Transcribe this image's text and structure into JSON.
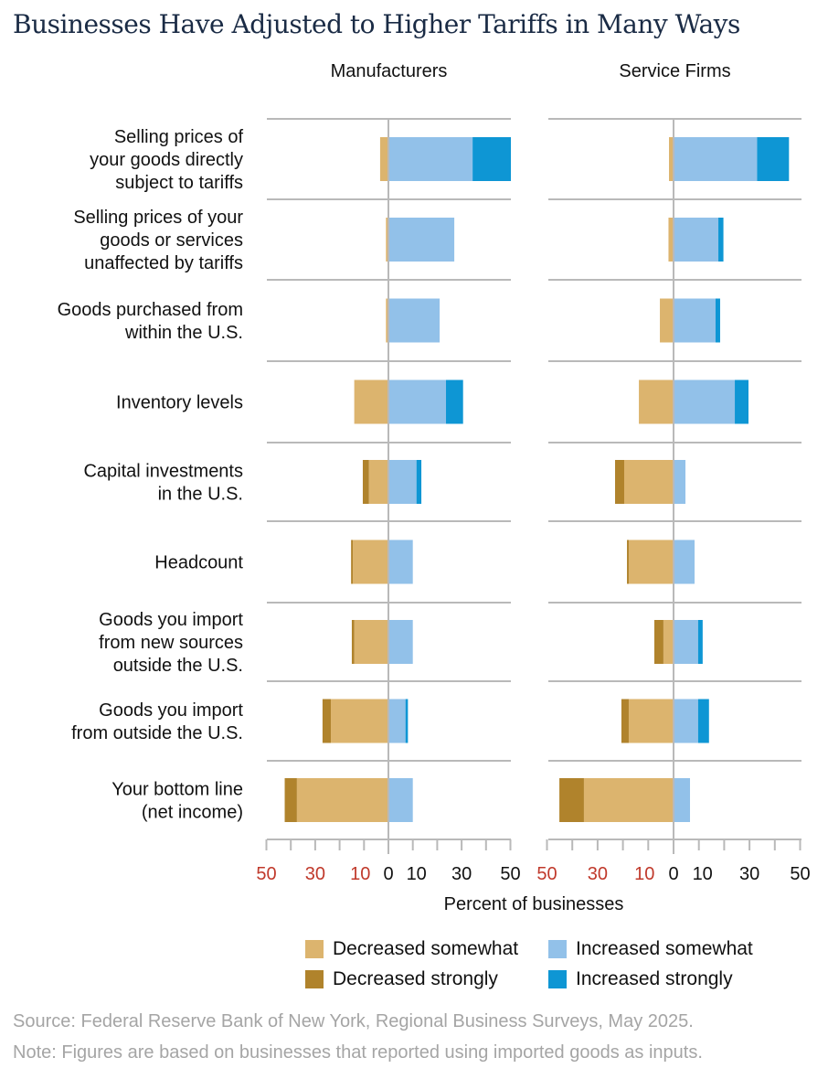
{
  "title": "Businesses Have Adjusted to Higher Tariffs in Many Ways",
  "chart_data": {
    "type": "bar",
    "orientation": "horizontal-diverging-stacked",
    "title": "Businesses Have Adjusted to Higher Tariffs in Many Ways",
    "xlabel": "Percent of businesses",
    "xlim": [
      -50,
      50
    ],
    "tick_labels": [
      "50",
      "30",
      "10",
      "0",
      "10",
      "30",
      "50"
    ],
    "tick_values": [
      -50,
      -30,
      -10,
      0,
      10,
      30,
      50
    ],
    "categories": [
      [
        "Selling prices of",
        "your goods directly",
        "subject to tariffs"
      ],
      [
        "Selling prices of your",
        "goods or services",
        "unaffected by tariffs"
      ],
      [
        "Goods purchased from",
        "within the U.S."
      ],
      [
        "Inventory levels"
      ],
      [
        "Capital investments",
        "in the U.S."
      ],
      [
        "Headcount"
      ],
      [
        "Goods you import",
        "from new sources",
        "outside the U.S."
      ],
      [
        "Goods you import",
        "from outside the U.S."
      ],
      [
        "Your bottom line",
        "(net income)"
      ]
    ],
    "series_names": [
      "Decreased somewhat",
      "Decreased strongly",
      "Increased somewhat",
      "Increased strongly"
    ],
    "colors": {
      "dec_some": "#dcb46e",
      "dec_strong": "#b0832c",
      "inc_some": "#92c1e9",
      "inc_strong": "#0e96d4",
      "neg_tick": "#c0392b"
    },
    "panels": [
      {
        "name": "Manufacturers",
        "dec_some": [
          3.4,
          1,
          1,
          14,
          8,
          14.6,
          14,
          23.6,
          37.5
        ],
        "dec_strong": [
          0,
          0,
          0,
          0,
          2.5,
          0.7,
          1,
          3.4,
          5
        ],
        "inc_some": [
          34.5,
          27,
          21,
          23.6,
          11.5,
          10,
          10,
          7,
          10
        ],
        "inc_strong": [
          15.7,
          0,
          0,
          7,
          2,
          0,
          0,
          1,
          0
        ]
      },
      {
        "name": "Service Firms",
        "dec_some": [
          1.8,
          2,
          5.4,
          13.7,
          19.5,
          17.7,
          4,
          17.7,
          35.4
        ],
        "dec_strong": [
          0,
          0,
          0,
          0,
          3.6,
          0.7,
          3.6,
          2.9,
          9.7
        ],
        "inc_some": [
          33,
          17.7,
          16.6,
          24.2,
          4.7,
          8.3,
          9.7,
          9.7,
          6.5
        ],
        "inc_strong": [
          12.6,
          2,
          1.8,
          5.4,
          0,
          0,
          1.8,
          4.3,
          0
        ]
      }
    ]
  },
  "legend": {
    "dec_some": "Decreased somewhat",
    "inc_some": "Increased somewhat",
    "dec_strong": "Decreased strongly",
    "inc_strong": "Increased strongly"
  },
  "footer": {
    "source": "Source: Federal Reserve Bank of New York, Regional Business Surveys, May 2025.",
    "note": "Note: Figures are based on businesses that reported using imported goods as inputs."
  }
}
